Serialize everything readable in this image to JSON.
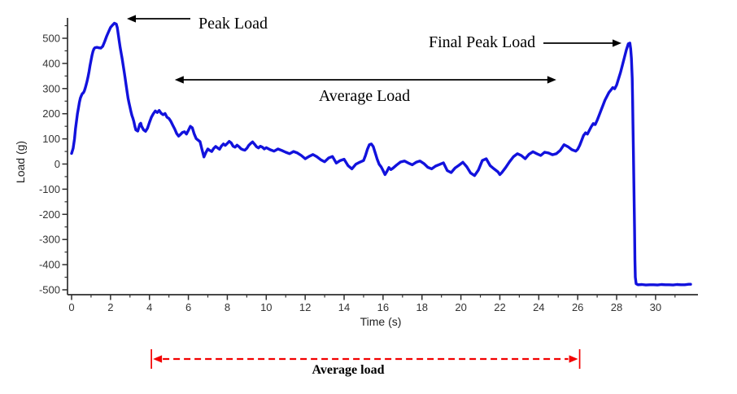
{
  "colors": {
    "series": "#1212dd",
    "axis": "#2e2e2e",
    "tick_label": "#333333",
    "annotation": "#000000",
    "bracket": "#f20000",
    "background": "#ffffff"
  },
  "chart_data": {
    "type": "line",
    "title": "",
    "xlabel": "Time (s)",
    "ylabel": "Load (g)",
    "xlim": [
      -0.2,
      32.2
    ],
    "ylim": [
      -520,
      580
    ],
    "grid": false,
    "legend": null,
    "x_major_ticks": [
      0,
      2,
      4,
      6,
      8,
      10,
      12,
      14,
      16,
      18,
      20,
      22,
      24,
      26,
      28,
      30
    ],
    "x_minor_ticks": [
      1,
      3,
      5,
      7,
      9,
      11,
      13,
      15,
      17,
      19,
      21,
      23,
      25,
      27,
      29,
      31
    ],
    "y_major_ticks": [
      -500,
      -400,
      -300,
      -200,
      -100,
      0,
      100,
      200,
      300,
      400,
      500
    ],
    "y_minor_ticks": [
      -450,
      -350,
      -250,
      -150,
      -50,
      50,
      150,
      250,
      350,
      450,
      550
    ],
    "annotations": [
      {
        "id": "peak-load",
        "label": "Peak Load",
        "points_to": [
          2.2,
          560
        ]
      },
      {
        "id": "final-peak-load",
        "label": "Final Peak Load",
        "points_to": [
          28.6,
          480
        ]
      },
      {
        "id": "average-load-span",
        "label": "Average Load",
        "from_s": 5.3,
        "to_s": 24.9
      },
      {
        "id": "average-load-window",
        "label": "Average load",
        "from_s": 4.1,
        "to_s": 26.1
      }
    ],
    "series": [
      {
        "name": "Load",
        "color": "#1212dd",
        "points": [
          [
            0,
            42
          ],
          [
            0.08,
            62
          ],
          [
            0.15,
            100
          ],
          [
            0.2,
            140
          ],
          [
            0.25,
            170
          ],
          [
            0.3,
            200
          ],
          [
            0.35,
            222
          ],
          [
            0.4,
            245
          ],
          [
            0.45,
            262
          ],
          [
            0.5,
            272
          ],
          [
            0.55,
            280
          ],
          [
            0.6,
            283
          ],
          [
            0.65,
            290
          ],
          [
            0.7,
            302
          ],
          [
            0.75,
            315
          ],
          [
            0.8,
            330
          ],
          [
            0.85,
            348
          ],
          [
            0.9,
            368
          ],
          [
            0.95,
            392
          ],
          [
            1.0,
            412
          ],
          [
            1.05,
            432
          ],
          [
            1.1,
            448
          ],
          [
            1.15,
            458
          ],
          [
            1.2,
            462
          ],
          [
            1.3,
            464
          ],
          [
            1.4,
            462
          ],
          [
            1.5,
            461
          ],
          [
            1.6,
            468
          ],
          [
            1.7,
            487
          ],
          [
            1.8,
            508
          ],
          [
            1.9,
            526
          ],
          [
            2.0,
            543
          ],
          [
            2.1,
            552
          ],
          [
            2.2,
            560
          ],
          [
            2.3,
            556
          ],
          [
            2.35,
            542
          ],
          [
            2.4,
            515
          ],
          [
            2.45,
            488
          ],
          [
            2.5,
            462
          ],
          [
            2.55,
            440
          ],
          [
            2.6,
            418
          ],
          [
            2.65,
            393
          ],
          [
            2.7,
            368
          ],
          [
            2.75,
            342
          ],
          [
            2.8,
            315
          ],
          [
            2.85,
            288
          ],
          [
            2.9,
            262
          ],
          [
            2.95,
            243
          ],
          [
            3.0,
            226
          ],
          [
            3.05,
            208
          ],
          [
            3.1,
            193
          ],
          [
            3.15,
            182
          ],
          [
            3.2,
            168
          ],
          [
            3.25,
            150
          ],
          [
            3.3,
            136
          ],
          [
            3.4,
            131
          ],
          [
            3.5,
            158
          ],
          [
            3.55,
            162
          ],
          [
            3.6,
            150
          ],
          [
            3.7,
            136
          ],
          [
            3.8,
            130
          ],
          [
            3.9,
            142
          ],
          [
            4.0,
            165
          ],
          [
            4.1,
            186
          ],
          [
            4.2,
            200
          ],
          [
            4.3,
            211
          ],
          [
            4.4,
            205
          ],
          [
            4.5,
            213
          ],
          [
            4.6,
            202
          ],
          [
            4.7,
            196
          ],
          [
            4.8,
            201
          ],
          [
            4.9,
            186
          ],
          [
            5.0,
            181
          ],
          [
            5.1,
            170
          ],
          [
            5.2,
            154
          ],
          [
            5.3,
            139
          ],
          [
            5.4,
            121
          ],
          [
            5.5,
            111
          ],
          [
            5.6,
            118
          ],
          [
            5.7,
            126
          ],
          [
            5.8,
            128
          ],
          [
            5.9,
            119
          ],
          [
            6.0,
            134
          ],
          [
            6.1,
            150
          ],
          [
            6.2,
            144
          ],
          [
            6.3,
            119
          ],
          [
            6.4,
            101
          ],
          [
            6.5,
            95
          ],
          [
            6.6,
            89
          ],
          [
            6.7,
            58
          ],
          [
            6.8,
            28
          ],
          [
            6.9,
            46
          ],
          [
            7.0,
            60
          ],
          [
            7.1,
            54
          ],
          [
            7.2,
            50
          ],
          [
            7.3,
            62
          ],
          [
            7.4,
            70
          ],
          [
            7.5,
            64
          ],
          [
            7.6,
            59
          ],
          [
            7.7,
            72
          ],
          [
            7.8,
            80
          ],
          [
            7.9,
            74
          ],
          [
            8.0,
            82
          ],
          [
            8.1,
            90
          ],
          [
            8.2,
            84
          ],
          [
            8.3,
            71
          ],
          [
            8.4,
            67
          ],
          [
            8.5,
            75
          ],
          [
            8.6,
            69
          ],
          [
            8.7,
            61
          ],
          [
            8.8,
            57
          ],
          [
            8.9,
            55
          ],
          [
            9.0,
            62
          ],
          [
            9.1,
            74
          ],
          [
            9.2,
            82
          ],
          [
            9.3,
            88
          ],
          [
            9.4,
            79
          ],
          [
            9.5,
            69
          ],
          [
            9.6,
            64
          ],
          [
            9.7,
            71
          ],
          [
            9.8,
            67
          ],
          [
            9.9,
            60
          ],
          [
            10.0,
            65
          ],
          [
            10.2,
            57
          ],
          [
            10.4,
            51
          ],
          [
            10.6,
            60
          ],
          [
            10.8,
            54
          ],
          [
            11.0,
            47
          ],
          [
            11.2,
            41
          ],
          [
            11.4,
            50
          ],
          [
            11.6,
            44
          ],
          [
            11.8,
            34
          ],
          [
            12.0,
            21
          ],
          [
            12.2,
            30
          ],
          [
            12.4,
            38
          ],
          [
            12.6,
            29
          ],
          [
            12.8,
            17
          ],
          [
            13.0,
            9
          ],
          [
            13.2,
            24
          ],
          [
            13.4,
            30
          ],
          [
            13.6,
            4
          ],
          [
            13.8,
            14
          ],
          [
            14.0,
            19
          ],
          [
            14.2,
            -6
          ],
          [
            14.4,
            -19
          ],
          [
            14.6,
            -1
          ],
          [
            14.8,
            7
          ],
          [
            15.0,
            14
          ],
          [
            15.1,
            34
          ],
          [
            15.2,
            59
          ],
          [
            15.3,
            77
          ],
          [
            15.4,
            80
          ],
          [
            15.5,
            69
          ],
          [
            15.6,
            44
          ],
          [
            15.7,
            19
          ],
          [
            15.8,
            -1
          ],
          [
            15.9,
            -11
          ],
          [
            16.0,
            -26
          ],
          [
            16.1,
            -42
          ],
          [
            16.2,
            -29
          ],
          [
            16.3,
            -14
          ],
          [
            16.4,
            -22
          ],
          [
            16.5,
            -17
          ],
          [
            16.7,
            -4
          ],
          [
            16.9,
            8
          ],
          [
            17.1,
            12
          ],
          [
            17.3,
            4
          ],
          [
            17.5,
            -3
          ],
          [
            17.7,
            7
          ],
          [
            17.9,
            12
          ],
          [
            18.1,
            2
          ],
          [
            18.3,
            -13
          ],
          [
            18.5,
            -19
          ],
          [
            18.7,
            -8
          ],
          [
            18.9,
            -2
          ],
          [
            19.1,
            5
          ],
          [
            19.3,
            -26
          ],
          [
            19.5,
            -34
          ],
          [
            19.7,
            -16
          ],
          [
            19.9,
            -5
          ],
          [
            20.1,
            7
          ],
          [
            20.3,
            -11
          ],
          [
            20.5,
            -36
          ],
          [
            20.7,
            -46
          ],
          [
            20.9,
            -24
          ],
          [
            21.1,
            14
          ],
          [
            21.3,
            21
          ],
          [
            21.5,
            -6
          ],
          [
            21.7,
            -19
          ],
          [
            21.9,
            -31
          ],
          [
            22.0,
            -42
          ],
          [
            22.1,
            -34
          ],
          [
            22.3,
            -14
          ],
          [
            22.5,
            9
          ],
          [
            22.7,
            29
          ],
          [
            22.9,
            41
          ],
          [
            23.1,
            34
          ],
          [
            23.3,
            21
          ],
          [
            23.5,
            39
          ],
          [
            23.7,
            49
          ],
          [
            23.9,
            41
          ],
          [
            24.1,
            34
          ],
          [
            24.3,
            47
          ],
          [
            24.5,
            44
          ],
          [
            24.7,
            37
          ],
          [
            24.9,
            41
          ],
          [
            25.1,
            54
          ],
          [
            25.3,
            77
          ],
          [
            25.5,
            69
          ],
          [
            25.7,
            57
          ],
          [
            25.9,
            51
          ],
          [
            26.0,
            59
          ],
          [
            26.1,
            74
          ],
          [
            26.2,
            94
          ],
          [
            26.3,
            114
          ],
          [
            26.4,
            124
          ],
          [
            26.5,
            119
          ],
          [
            26.6,
            134
          ],
          [
            26.7,
            149
          ],
          [
            26.8,
            161
          ],
          [
            26.9,
            157
          ],
          [
            27.0,
            174
          ],
          [
            27.1,
            194
          ],
          [
            27.2,
            214
          ],
          [
            27.3,
            234
          ],
          [
            27.4,
            254
          ],
          [
            27.5,
            269
          ],
          [
            27.6,
            284
          ],
          [
            27.7,
            294
          ],
          [
            27.8,
            304
          ],
          [
            27.9,
            299
          ],
          [
            28.0,
            314
          ],
          [
            28.1,
            339
          ],
          [
            28.2,
            364
          ],
          [
            28.3,
            394
          ],
          [
            28.4,
            424
          ],
          [
            28.5,
            454
          ],
          [
            28.6,
            478
          ],
          [
            28.68,
            481
          ],
          [
            28.72,
            458
          ],
          [
            28.76,
            420
          ],
          [
            28.8,
            340
          ],
          [
            28.82,
            250
          ],
          [
            28.84,
            160
          ],
          [
            28.86,
            60
          ],
          [
            28.88,
            -50
          ],
          [
            28.9,
            -160
          ],
          [
            28.92,
            -270
          ],
          [
            28.94,
            -380
          ],
          [
            28.96,
            -450
          ],
          [
            29.0,
            -476
          ],
          [
            29.1,
            -480
          ],
          [
            29.3,
            -479
          ],
          [
            29.5,
            -481
          ],
          [
            29.7,
            -480
          ],
          [
            29.9,
            -480
          ],
          [
            30.1,
            -481
          ],
          [
            30.3,
            -479
          ],
          [
            30.5,
            -480
          ],
          [
            30.7,
            -480
          ],
          [
            30.9,
            -481
          ],
          [
            31.1,
            -479
          ],
          [
            31.3,
            -480
          ],
          [
            31.5,
            -480
          ],
          [
            31.7,
            -478
          ],
          [
            31.8,
            -478
          ]
        ]
      }
    ]
  }
}
